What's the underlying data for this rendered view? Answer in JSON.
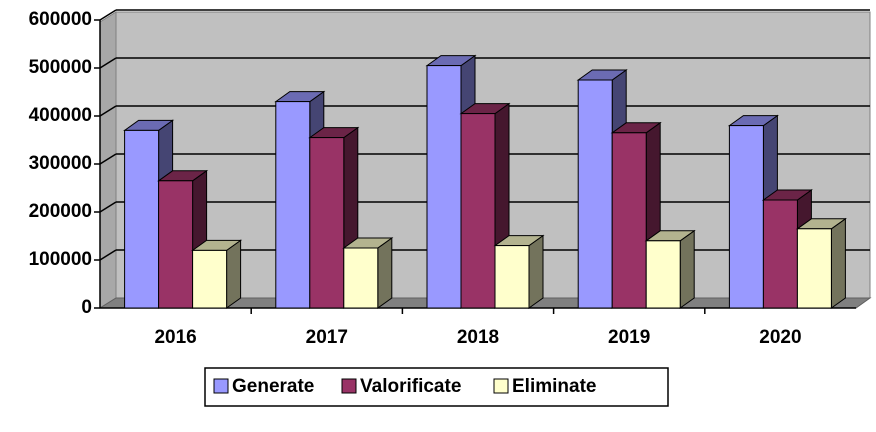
{
  "chart_data": {
    "type": "bar3d",
    "categories": [
      "2016",
      "2017",
      "2018",
      "2019",
      "2020"
    ],
    "series": [
      {
        "name": "Generate",
        "color": "#9999ff",
        "values": [
          370000,
          430000,
          505000,
          475000,
          380000
        ]
      },
      {
        "name": "Valorificate",
        "color": "#993366",
        "values": [
          265000,
          355000,
          405000,
          365000,
          225000
        ]
      },
      {
        "name": "Eliminate",
        "color": "#ffffcc",
        "values": [
          120000,
          125000,
          130000,
          140000,
          165000
        ]
      }
    ],
    "ylim": [
      0,
      600000
    ],
    "yticks": [
      0,
      100000,
      200000,
      300000,
      400000,
      500000,
      600000
    ],
    "grid": true,
    "legend": "bottom"
  }
}
